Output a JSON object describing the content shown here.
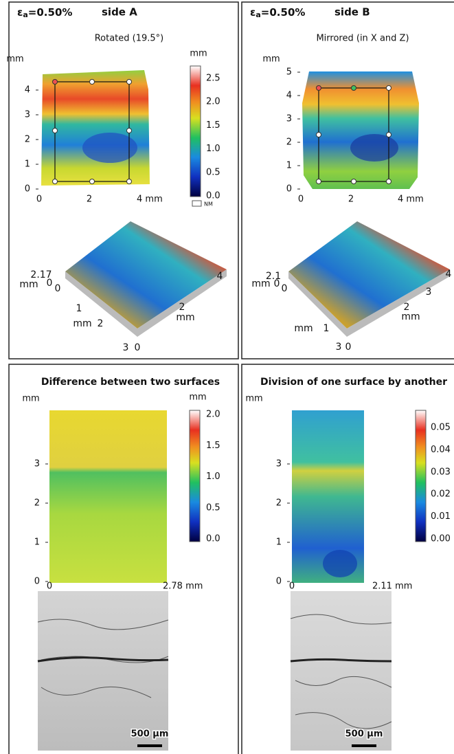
{
  "panels": [
    {
      "symbol": "ε",
      "subscript": "a",
      "strain": "=0.50%",
      "side": "side A",
      "subtitle": "Rotated (19.5°)",
      "map_y_unit": "mm",
      "colorbar_unit": "mm",
      "map_y_ticks": [
        "0",
        "1",
        "2",
        "3",
        "4"
      ],
      "map_x_ticks": [
        "0",
        "2",
        "4 mm"
      ],
      "colorbar_ticks": [
        "0.0",
        "0.5",
        "1.0",
        "1.5",
        "2.0",
        "2.5"
      ],
      "colorbar_note": "NM",
      "surface_labels": [
        "2.17",
        "mm",
        "0",
        "0",
        "1",
        "mm",
        "2",
        "3",
        "0",
        "2",
        "mm",
        "4"
      ]
    },
    {
      "symbol": "ε",
      "subscript": "a",
      "strain": "=0.50%",
      "side": "side B",
      "subtitle": "Mirrored (in X and Z)",
      "map_y_unit": "mm",
      "map_y_ticks": [
        "0",
        "1",
        "2",
        "3",
        "4",
        "5"
      ],
      "map_x_ticks": [
        "0",
        "2",
        "4 mm"
      ],
      "surface_labels": [
        "2.1",
        "mm",
        "0",
        "0",
        "mm",
        "1",
        "2",
        "mm",
        "3",
        "4",
        "3",
        "0"
      ]
    },
    {
      "title": "Difference between two surfaces",
      "map_y_unit": "mm",
      "colorbar_unit": "mm",
      "map_y_ticks": [
        "0",
        "1",
        "2",
        "3"
      ],
      "map_x_ticks": [
        "0",
        "2.78 mm"
      ],
      "colorbar_ticks": [
        "0.0",
        "0.5",
        "1.0",
        "1.5",
        "2.0"
      ],
      "scale_bar": "500 µm"
    },
    {
      "title": "Division of one surface by another",
      "map_y_unit": "mm",
      "map_y_ticks": [
        "0",
        "1",
        "2",
        "3"
      ],
      "map_x_ticks": [
        "0",
        "2.11 mm"
      ],
      "colorbar_ticks": [
        "0.00",
        "0.01",
        "0.02",
        "0.03",
        "0.04",
        "0.05"
      ],
      "scale_bar": "500 µm"
    }
  ]
}
